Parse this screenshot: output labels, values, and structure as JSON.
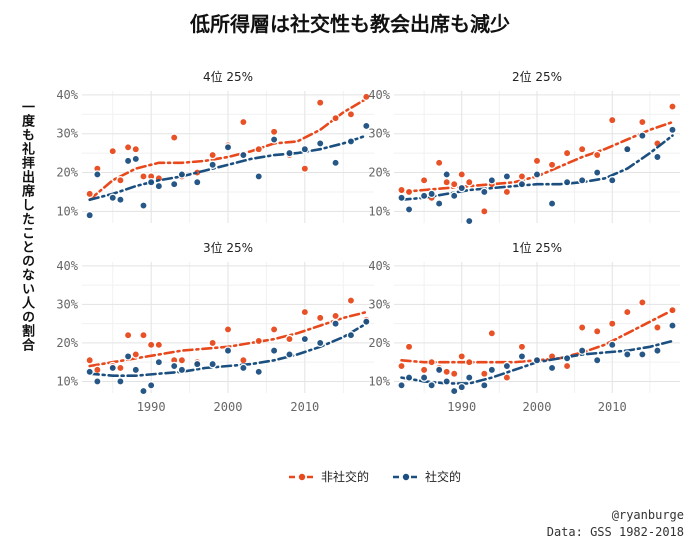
{
  "title": "低所得層は社交性も教会出席も減少",
  "ylabel": "一度も礼拝出席したことのない人の割合",
  "credit": "@ryanburge",
  "source": "Data: GSS 1982-2018",
  "colors": {
    "non_social": "#E8481C",
    "social": "#1B4F80"
  },
  "chart_data": {
    "type": "scatter",
    "title": "低所得層は社交性も教会出席も減少",
    "ylabel": "一度も礼拝出席したことのない人の割合",
    "xlim": [
      1981,
      2019
    ],
    "ylim": [
      7,
      41
    ],
    "x_ticks": [
      1990,
      2000,
      2010
    ],
    "y_ticks": [
      10,
      20,
      30,
      40
    ],
    "y_tick_labels": [
      "10%",
      "20%",
      "30%",
      "40%"
    ],
    "grid": true,
    "legend": "bottom",
    "legend_entries": [
      "非社交的",
      "社交的"
    ],
    "panels": [
      {
        "label": "4位 25%",
        "series": [
          {
            "name": "非社交的",
            "x": [
              1982,
              1983,
              1985,
              1986,
              1987,
              1988,
              1989,
              1990,
              1991,
              1993,
              1994,
              1996,
              1998,
              2000,
              2002,
              2004,
              2006,
              2008,
              2010,
              2012,
              2014,
              2016,
              2018
            ],
            "y": [
              14.5,
              21,
              25.5,
              18,
              26.5,
              26,
              19,
              19,
              18.5,
              29,
              19,
              20,
              24.5,
              27,
              33,
              26,
              30.5,
              24.5,
              21,
              38,
              34,
              35,
              39.5
            ],
            "trend": [
              13,
              18,
              21,
              22.5,
              22.5,
              23,
              24,
              25.5,
              27.5,
              28,
              31,
              35.5,
              39
            ]
          },
          {
            "name": "社交的",
            "x": [
              1982,
              1983,
              1985,
              1986,
              1987,
              1988,
              1989,
              1990,
              1991,
              1993,
              1994,
              1996,
              1998,
              2000,
              2002,
              2004,
              2006,
              2008,
              2010,
              2012,
              2014,
              2016,
              2018
            ],
            "y": [
              9,
              19.5,
              13.5,
              13,
              23,
              23.5,
              11.5,
              17.5,
              16.5,
              17,
              19.5,
              17.5,
              22,
              26.5,
              24.5,
              19,
              28.5,
              25,
              26,
              27.5,
              22.5,
              28,
              32
            ],
            "trend": [
              13,
              14.5,
              16.5,
              18,
              19,
              20.5,
              22,
              23.5,
              24.5,
              25,
              26,
              27.5,
              29.5
            ]
          }
        ]
      },
      {
        "label": "2位 25%",
        "series": [
          {
            "name": "非社交的",
            "x": [
              1982,
              1983,
              1985,
              1986,
              1987,
              1988,
              1989,
              1990,
              1991,
              1993,
              1994,
              1996,
              1998,
              2000,
              2002,
              2004,
              2006,
              2008,
              2010,
              2012,
              2014,
              2016,
              2018
            ],
            "y": [
              15.5,
              15,
              18,
              13.5,
              22.5,
              17.5,
              17,
              19.5,
              17.5,
              10,
              17,
              15,
              19,
              23,
              22,
              25,
              26,
              24.5,
              33.5,
              26,
              33,
              27.5,
              37
            ],
            "trend": [
              15,
              15.5,
              16,
              16.5,
              17,
              17.5,
              19,
              21.5,
              24,
              26,
              28.5,
              31,
              33
            ]
          },
          {
            "name": "社交的",
            "x": [
              1982,
              1983,
              1985,
              1986,
              1987,
              1988,
              1989,
              1990,
              1991,
              1993,
              1994,
              1996,
              1998,
              2000,
              2002,
              2004,
              2006,
              2008,
              2010,
              2012,
              2014,
              2016,
              2018
            ],
            "y": [
              13.5,
              10.5,
              14,
              14.5,
              12,
              19.5,
              14,
              16,
              7.5,
              15,
              18,
              19,
              17,
              19.5,
              12,
              17.5,
              18,
              20,
              18,
              26,
              29.5,
              24,
              31
            ],
            "trend": [
              13,
              13.5,
              14.5,
              15.5,
              16,
              16.5,
              17,
              17,
              17.5,
              18.5,
              21,
              25,
              29.5
            ]
          }
        ]
      },
      {
        "label": "3位 25%",
        "series": [
          {
            "name": "非社交的",
            "x": [
              1982,
              1983,
              1985,
              1986,
              1987,
              1988,
              1989,
              1990,
              1991,
              1993,
              1994,
              1996,
              1998,
              2000,
              2002,
              2004,
              2006,
              2008,
              2010,
              2012,
              2014,
              2016,
              2018
            ],
            "y": [
              15.5,
              13,
              14,
              13.5,
              22,
              17,
              22,
              19.5,
              19.5,
              15.5,
              15.5,
              15,
              20,
              23.5,
              15.5,
              20.5,
              23.5,
              21,
              28,
              26.5,
              27,
              31,
              26
            ],
            "trend": [
              14,
              15,
              16,
              17,
              18,
              18.5,
              19,
              20,
              21,
              22.5,
              24.5,
              26.5,
              28
            ]
          },
          {
            "name": "社交的",
            "x": [
              1982,
              1983,
              1985,
              1986,
              1987,
              1988,
              1989,
              1990,
              1991,
              1993,
              1994,
              1996,
              1998,
              2000,
              2002,
              2004,
              2006,
              2008,
              2010,
              2012,
              2014,
              2016,
              2018
            ],
            "y": [
              12.5,
              10,
              13.5,
              10,
              16.5,
              13,
              7.5,
              9,
              15,
              14,
              13,
              14.5,
              14.5,
              18,
              13.5,
              12.5,
              18,
              17,
              21,
              20,
              25,
              22,
              25.5
            ],
            "trend": [
              12,
              11.5,
              11.5,
              12,
              12.5,
              13.5,
              14,
              14.5,
              15.5,
              17,
              19,
              21.5,
              25
            ]
          }
        ]
      },
      {
        "label": "1位 25%",
        "series": [
          {
            "name": "非社交的",
            "x": [
              1982,
              1983,
              1985,
              1986,
              1987,
              1988,
              1989,
              1990,
              1991,
              1993,
              1994,
              1996,
              1998,
              2000,
              2002,
              2004,
              2006,
              2008,
              2010,
              2012,
              2014,
              2016,
              2018
            ],
            "y": [
              14,
              19,
              13,
              15,
              13.5,
              12.5,
              12,
              16.5,
              15,
              12,
              22.5,
              11,
              19,
              15.5,
              16.5,
              14,
              24,
              23,
              25,
              28,
              30.5,
              24,
              28.5
            ],
            "trend": [
              15.5,
              15,
              15,
              15,
              15,
              15,
              15.5,
              16,
              17.5,
              19.5,
              22.5,
              25.5,
              28.5
            ]
          },
          {
            "name": "社交的",
            "x": [
              1982,
              1983,
              1985,
              1986,
              1987,
              1988,
              1989,
              1990,
              1991,
              1993,
              1994,
              1996,
              1998,
              2000,
              2002,
              2004,
              2006,
              2008,
              2010,
              2012,
              2014,
              2016,
              2018
            ],
            "y": [
              9,
              11,
              11,
              9,
              13,
              10,
              7.5,
              8.5,
              11,
              9,
              13,
              14,
              16.5,
              15.5,
              13.5,
              16,
              18,
              15.5,
              19.5,
              17,
              17,
              18,
              24.5
            ],
            "trend": [
              11,
              10,
              9.5,
              9.5,
              11,
              13,
              15,
              16,
              17,
              17.5,
              18,
              19,
              20.5
            ]
          }
        ]
      }
    ]
  }
}
